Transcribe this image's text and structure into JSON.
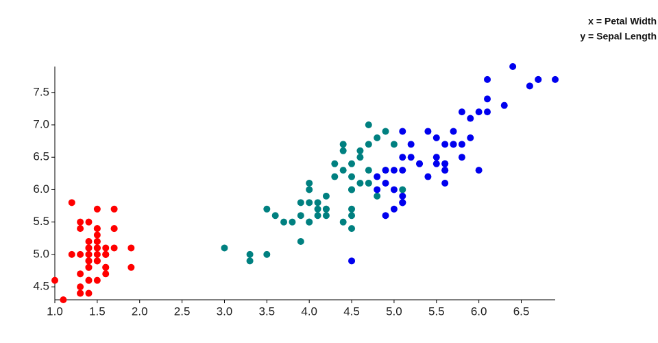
{
  "chart_data": {
    "type": "scatter",
    "annotations": [
      "x = Petal Width",
      "y = Sepal Length"
    ],
    "xlim": [
      1,
      6.9
    ],
    "ylim": [
      4.3,
      7.9
    ],
    "xticks": [
      {
        "value": 1,
        "label": "1.0"
      },
      1.5,
      {
        "value": 2,
        "label": "2.0"
      },
      2.5,
      {
        "value": 3,
        "label": "3.0"
      },
      3.5,
      {
        "value": 4,
        "label": "4.0"
      },
      4.5,
      {
        "value": 5,
        "label": "5.0"
      },
      5.5,
      {
        "value": 6,
        "label": "6.0"
      },
      6.5
    ],
    "yticks": [
      4.5,
      {
        "value": 5,
        "label": "5.0"
      },
      5.5,
      {
        "value": 6,
        "label": "6.0"
      },
      6.5,
      {
        "value": 7,
        "label": "7.0"
      },
      7.5
    ],
    "series": [
      {
        "color": "#ff0000",
        "x": [
          1.4,
          1.4,
          1.3,
          1.5,
          1.4,
          1.7,
          1.4,
          1.5,
          1.4,
          1.5,
          1.5,
          1.6,
          1.4,
          1.1,
          1.2,
          1.5,
          1.3,
          1.4,
          1.7,
          1.5,
          1.7,
          1.5,
          1.0,
          1.7,
          1.9,
          1.6,
          1.6,
          1.5,
          1.4,
          1.6,
          1.6,
          1.5,
          1.5,
          1.4,
          1.5,
          1.2,
          1.3,
          1.4,
          1.3,
          1.5,
          1.3,
          1.3,
          1.3,
          1.6,
          1.9,
          1.4,
          1.6,
          1.4,
          1.5,
          1.4
        ],
        "values": [
          5.1,
          4.9,
          4.7,
          4.6,
          5.0,
          5.4,
          4.6,
          5.0,
          4.4,
          4.9,
          5.4,
          4.8,
          4.8,
          4.3,
          5.8,
          5.7,
          5.4,
          5.1,
          5.7,
          5.1,
          5.4,
          5.1,
          4.6,
          5.1,
          4.8,
          5.0,
          5.0,
          5.2,
          5.2,
          4.7,
          4.8,
          5.4,
          5.2,
          5.5,
          4.9,
          5.0,
          5.5,
          4.9,
          4.4,
          5.1,
          5.0,
          4.5,
          4.4,
          5.0,
          5.1,
          4.8,
          5.1,
          4.6,
          5.3,
          5.0
        ]
      },
      {
        "color": "#008080",
        "x": [
          4.7,
          4.5,
          4.9,
          4.0,
          4.6,
          4.5,
          4.7,
          3.3,
          4.6,
          3.9,
          3.5,
          4.2,
          4.0,
          4.7,
          3.6,
          4.4,
          4.5,
          4.1,
          4.5,
          3.9,
          4.8,
          4.0,
          4.9,
          4.7,
          4.3,
          4.4,
          4.8,
          5.0,
          4.5,
          3.5,
          3.8,
          3.7,
          3.9,
          5.1,
          4.5,
          4.5,
          4.7,
          4.4,
          4.1,
          4.0,
          4.4,
          4.6,
          4.0,
          3.3,
          4.2,
          4.2,
          4.2,
          4.3,
          3.0,
          4.1
        ],
        "values": [
          7.0,
          6.4,
          6.9,
          5.5,
          6.5,
          5.7,
          6.3,
          4.9,
          6.6,
          5.2,
          5.0,
          5.9,
          6.0,
          6.1,
          5.6,
          6.7,
          5.6,
          5.8,
          6.2,
          5.6,
          5.9,
          6.1,
          6.3,
          6.1,
          6.4,
          6.6,
          6.8,
          6.7,
          6.0,
          5.7,
          5.5,
          5.5,
          5.8,
          6.0,
          5.4,
          6.0,
          6.7,
          6.3,
          5.6,
          5.5,
          5.5,
          6.1,
          5.8,
          5.0,
          5.6,
          5.7,
          5.7,
          6.2,
          5.1,
          5.7
        ]
      },
      {
        "color": "#0000ee",
        "x": [
          6.0,
          5.1,
          5.9,
          5.6,
          5.8,
          6.6,
          4.5,
          6.3,
          5.8,
          6.1,
          5.1,
          5.3,
          5.5,
          5.0,
          5.1,
          5.3,
          5.5,
          6.7,
          6.9,
          5.0,
          5.7,
          4.9,
          6.7,
          4.9,
          5.7,
          6.0,
          4.8,
          4.9,
          5.6,
          5.8,
          6.1,
          6.4,
          5.6,
          5.1,
          5.6,
          6.1,
          5.6,
          5.5,
          4.8,
          5.4,
          5.6,
          5.1,
          5.1,
          5.9,
          5.7,
          5.2,
          5.0,
          5.2,
          5.4,
          5.1
        ],
        "values": [
          6.3,
          5.8,
          7.1,
          6.3,
          6.5,
          7.6,
          4.9,
          7.3,
          6.7,
          7.2,
          6.5,
          6.4,
          6.8,
          5.7,
          5.8,
          6.4,
          6.5,
          7.7,
          7.7,
          6.0,
          6.9,
          5.6,
          7.7,
          6.3,
          6.7,
          7.2,
          6.2,
          6.1,
          6.4,
          7.2,
          7.4,
          7.9,
          6.4,
          6.3,
          6.1,
          7.7,
          6.3,
          6.4,
          6.0,
          6.9,
          6.7,
          6.9,
          5.8,
          6.8,
          6.7,
          6.7,
          6.3,
          6.5,
          6.2,
          5.9
        ]
      }
    ]
  }
}
